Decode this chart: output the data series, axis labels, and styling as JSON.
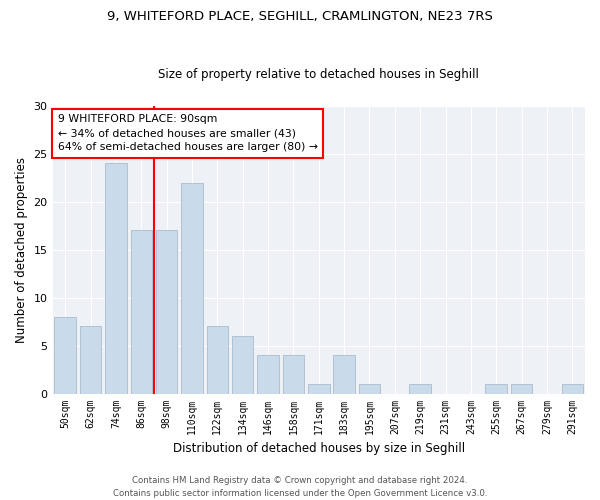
{
  "title1": "9, WHITEFORD PLACE, SEGHILL, CRAMLINGTON, NE23 7RS",
  "title2": "Size of property relative to detached houses in Seghill",
  "xlabel": "Distribution of detached houses by size in Seghill",
  "ylabel": "Number of detached properties",
  "categories": [
    "50sqm",
    "62sqm",
    "74sqm",
    "86sqm",
    "98sqm",
    "110sqm",
    "122sqm",
    "134sqm",
    "146sqm",
    "158sqm",
    "171sqm",
    "183sqm",
    "195sqm",
    "207sqm",
    "219sqm",
    "231sqm",
    "243sqm",
    "255sqm",
    "267sqm",
    "279sqm",
    "291sqm"
  ],
  "values": [
    8,
    7,
    24,
    17,
    17,
    22,
    7,
    6,
    4,
    4,
    1,
    4,
    1,
    0,
    1,
    0,
    0,
    1,
    1,
    0,
    1
  ],
  "bar_color": "#c9daea",
  "bar_edge_color": "#aabccc",
  "vline_color": "red",
  "annotation_text": "9 WHITEFORD PLACE: 90sqm\n← 34% of detached houses are smaller (43)\n64% of semi-detached houses are larger (80) →",
  "annotation_box_color": "white",
  "annotation_box_edge_color": "red",
  "ylim": [
    0,
    30
  ],
  "yticks": [
    0,
    5,
    10,
    15,
    20,
    25,
    30
  ],
  "footer": "Contains HM Land Registry data © Crown copyright and database right 2024.\nContains public sector information licensed under the Open Government Licence v3.0.",
  "bg_color": "#ffffff",
  "plot_bg_color": "#eef2f7",
  "grid_color": "#ffffff",
  "title1_fontsize": 9.5,
  "title2_fontsize": 8.5
}
